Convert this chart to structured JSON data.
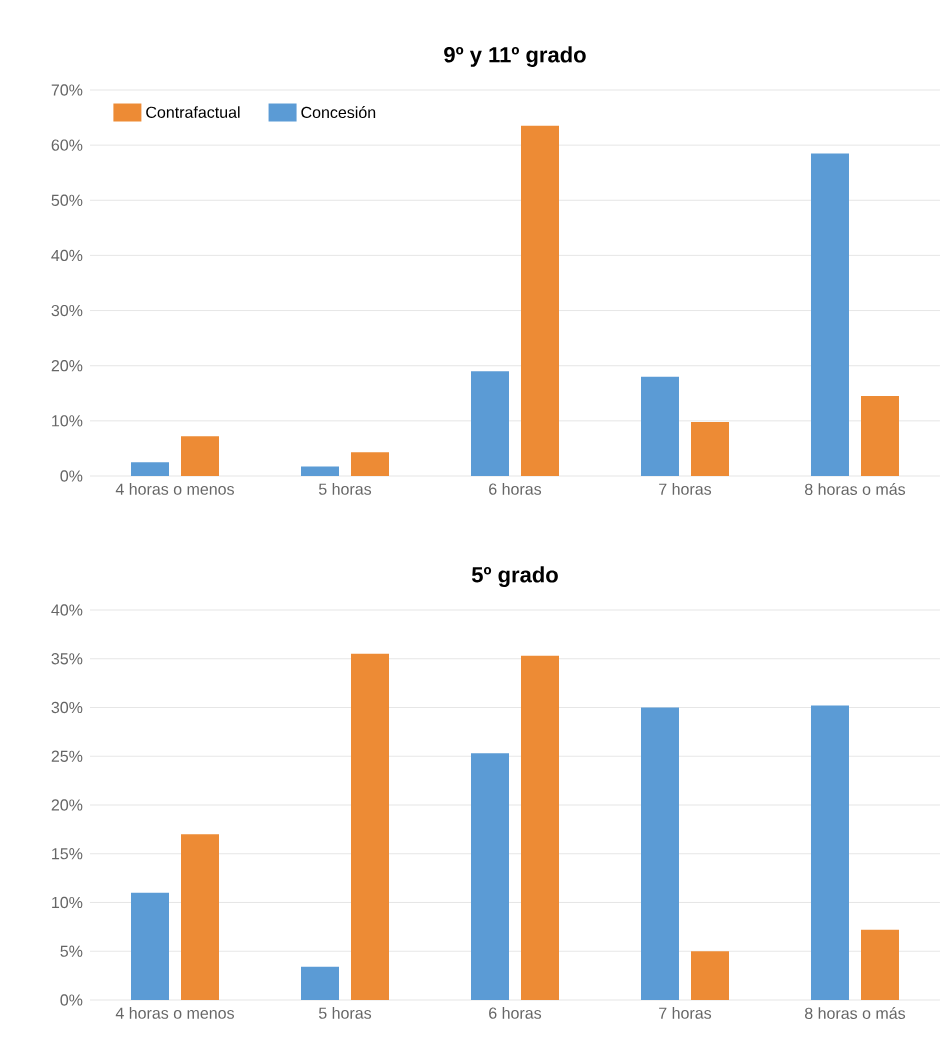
{
  "chart_data": [
    {
      "type": "bar",
      "title": "9º y 11º grado",
      "categories": [
        "4 horas o menos",
        "5 horas",
        "6 horas",
        "7 horas",
        "8 horas o más"
      ],
      "series": [
        {
          "name": "Concesión",
          "color": "#5b9bd5",
          "values": [
            2.5,
            1.7,
            19,
            18,
            58.5
          ]
        },
        {
          "name": "Contrafactual",
          "color": "#ed8b35",
          "values": [
            7.2,
            4.3,
            63.5,
            9.8,
            14.5
          ]
        }
      ],
      "ylim": [
        0,
        70
      ],
      "yticks": [
        {
          "value": 0,
          "label": "0%"
        },
        {
          "value": 10,
          "label": "10%"
        },
        {
          "value": 20,
          "label": "20%"
        },
        {
          "value": 30,
          "label": "30%"
        },
        {
          "value": 40,
          "label": "40%"
        },
        {
          "value": 50,
          "label": "50%"
        },
        {
          "value": 60,
          "label": "60%"
        },
        {
          "value": 70,
          "label": "70%"
        }
      ],
      "grid": "y",
      "legend": "top left"
    },
    {
      "type": "bar",
      "title": "5º grado",
      "categories": [
        "4 horas o menos",
        "5 horas",
        "6 horas",
        "7 horas",
        "8 horas o más"
      ],
      "series": [
        {
          "color": "#5b9bd5",
          "values": [
            11,
            3.4,
            25.3,
            30,
            30.2
          ]
        },
        {
          "color": "#ed8b35",
          "values": [
            17,
            35.5,
            35.3,
            5,
            7.2
          ]
        }
      ],
      "ylim": [
        0,
        40
      ],
      "yticks": [
        {
          "value": 0,
          "label": "0%"
        },
        {
          "value": 5,
          "label": "5%"
        },
        {
          "value": 10,
          "label": "10%"
        },
        {
          "value": 15,
          "label": "15%"
        },
        {
          "value": 20,
          "label": "20%"
        },
        {
          "value": 25,
          "label": "25%"
        },
        {
          "value": 30,
          "label": "30%"
        },
        {
          "value": 35,
          "label": "35%"
        },
        {
          "value": 40,
          "label": "40%"
        }
      ],
      "grid": "y"
    }
  ]
}
